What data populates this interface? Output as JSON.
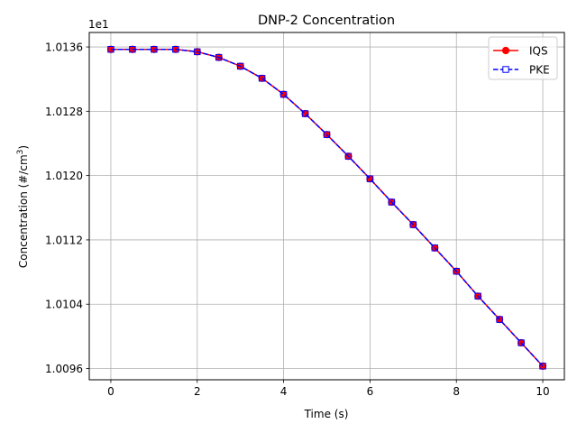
{
  "chart_data": {
    "type": "line",
    "title": "DNP-2 Concentration",
    "xlabel": "Time (s)",
    "ylabel_main": "Concentration (#/cm",
    "ylabel_sup": "3",
    "ylabel_close": ")",
    "offset_label": "1e1",
    "xlim": [
      -0.5,
      10.5
    ],
    "ylim": [
      1.00946,
      1.01378
    ],
    "xticks": [
      0,
      2,
      4,
      6,
      8,
      10
    ],
    "xtick_labels": [
      "0",
      "2",
      "4",
      "6",
      "8",
      "10"
    ],
    "yticks": [
      1.0096,
      1.0104,
      1.0112,
      1.012,
      1.0128,
      1.0136
    ],
    "ytick_labels": [
      "1.0096",
      "1.0104",
      "1.0112",
      "1.0120",
      "1.0128",
      "1.0136"
    ],
    "grid": true,
    "legend_position": "upper right",
    "x": [
      0,
      0.5,
      1,
      1.5,
      2,
      2.5,
      3,
      3.5,
      4,
      4.5,
      5,
      5.5,
      6,
      6.5,
      7,
      7.5,
      8,
      8.5,
      9,
      9.5,
      10
    ],
    "series": [
      {
        "name": "IQS",
        "color": "#ff0000",
        "line_style": "solid",
        "marker": "circle",
        "values": [
          1.01357,
          1.01357,
          1.01357,
          1.01357,
          1.01354,
          1.01347,
          1.01336,
          1.01321,
          1.01301,
          1.01277,
          1.01251,
          1.01224,
          1.01196,
          1.01167,
          1.01139,
          1.0111,
          1.01081,
          1.0105,
          1.01021,
          1.00992,
          1.00963
        ]
      },
      {
        "name": "PKE",
        "color": "#0000ff",
        "line_style": "dashed",
        "marker": "square-open",
        "values": [
          1.01357,
          1.01357,
          1.01357,
          1.01357,
          1.01354,
          1.01347,
          1.01336,
          1.01321,
          1.01301,
          1.01277,
          1.01251,
          1.01224,
          1.01196,
          1.01167,
          1.01139,
          1.0111,
          1.01081,
          1.0105,
          1.01021,
          1.00992,
          1.00963
        ]
      }
    ]
  }
}
